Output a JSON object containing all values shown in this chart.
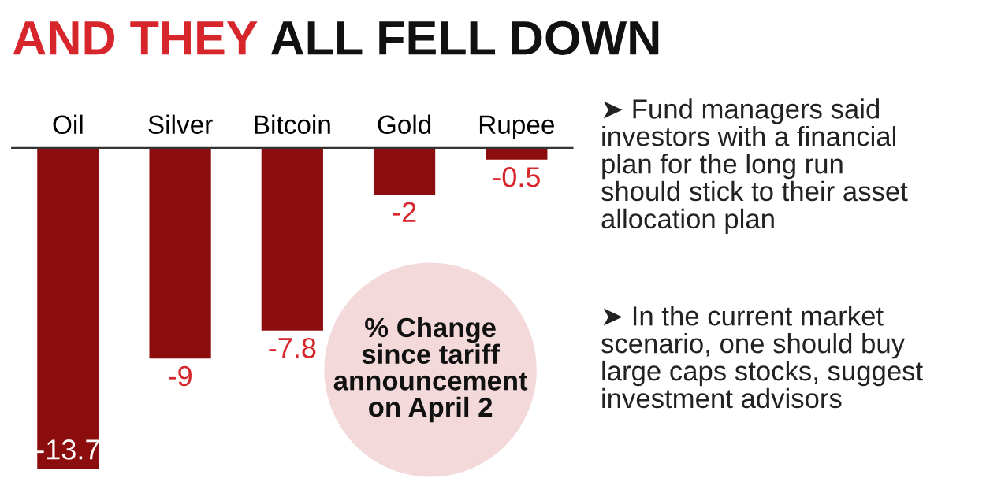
{
  "chart_data": {
    "type": "bar",
    "title": "AND THEY ALL FELL DOWN",
    "categories": [
      "Oil",
      "Silver",
      "Bitcoin",
      "Gold",
      "Rupee"
    ],
    "values": [
      -13.7,
      -9,
      -7.8,
      -2,
      -0.5
    ],
    "color": "#8c0d0d",
    "data_labels": true,
    "grid": false,
    "legend": false,
    "annotations": [
      "% Change\nsince tariff\nannouncement\non April 2",
      "➤ Fund managers said\ninvestors with a financial\nplan for the long run\nshould stick to their asset\nallocation plan",
      "➤ In the current market\nscenario, one should buy\nlarge caps stocks, suggest\ninvestment advisors"
    ]
  }
}
